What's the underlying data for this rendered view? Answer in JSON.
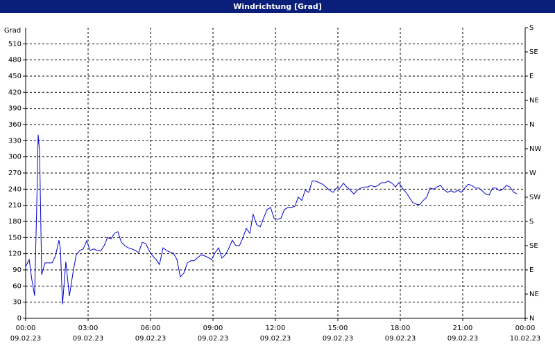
{
  "chart_data": {
    "type": "line",
    "title": "Windrichtung [Grad]",
    "y_label": "Grad",
    "xlim": [
      0,
      24
    ],
    "xticks": [
      {
        "value": 0,
        "label": "00:00"
      },
      {
        "value": 3,
        "label": "03:00"
      },
      {
        "value": 6,
        "label": "06:00"
      },
      {
        "value": 9,
        "label": "09:00"
      },
      {
        "value": 12,
        "label": "12:00"
      },
      {
        "value": 15,
        "label": "15:00"
      },
      {
        "value": 18,
        "label": "18:00"
      },
      {
        "value": 21,
        "label": "21:00"
      },
      {
        "value": 24,
        "label": "00:00"
      }
    ],
    "xtick_dates": [
      "09.02.23",
      "09.02.23",
      "09.02.23",
      "09.02.23",
      "09.02.23",
      "09.02.23",
      "09.02.23",
      "09.02.23",
      "10.02.23"
    ],
    "ylim": [
      0,
      540
    ],
    "yticks": [
      0,
      30,
      60,
      90,
      120,
      150,
      180,
      210,
      240,
      270,
      300,
      330,
      360,
      390,
      420,
      450,
      480,
      510
    ],
    "y2lim": [
      0,
      540
    ],
    "y2ticks": [
      {
        "value": 0,
        "label": "N"
      },
      {
        "value": 45,
        "label": "NE"
      },
      {
        "value": 90,
        "label": "E"
      },
      {
        "value": 135,
        "label": "SE"
      },
      {
        "value": 180,
        "label": "S"
      },
      {
        "value": 225,
        "label": "SW"
      },
      {
        "value": 270,
        "label": "W"
      },
      {
        "value": 315,
        "label": "NW"
      },
      {
        "value": 360,
        "label": "N"
      },
      {
        "value": 405,
        "label": "NE"
      },
      {
        "value": 450,
        "label": "E"
      },
      {
        "value": 495,
        "label": "SE"
      },
      {
        "value": 540,
        "label": "S"
      }
    ],
    "grid": true,
    "series": [
      {
        "color": "#0000cc",
        "x": [
          0,
          0.17,
          0.3,
          0.43,
          0.53,
          0.6,
          0.67,
          0.77,
          0.93,
          1.1,
          1.27,
          1.43,
          1.6,
          1.67,
          1.77,
          1.93,
          2.1,
          2.27,
          2.43,
          2.6,
          2.77,
          2.93,
          3.1,
          3.27,
          3.43,
          3.6,
          3.77,
          3.93,
          4.1,
          4.27,
          4.43,
          4.6,
          4.77,
          4.93,
          5.1,
          5.27,
          5.43,
          5.6,
          5.77,
          5.93,
          6.1,
          6.27,
          6.43,
          6.6,
          6.77,
          6.93,
          7.1,
          7.27,
          7.43,
          7.6,
          7.77,
          7.93,
          8.1,
          8.27,
          8.43,
          8.6,
          8.77,
          8.93,
          9.1,
          9.27,
          9.43,
          9.6,
          9.77,
          9.93,
          10.1,
          10.27,
          10.43,
          10.6,
          10.77,
          10.93,
          11.1,
          11.27,
          11.43,
          11.6,
          11.77,
          11.93,
          12.1,
          12.27,
          12.43,
          12.6,
          12.77,
          12.93,
          13.1,
          13.27,
          13.43,
          13.6,
          13.77,
          13.93,
          14.1,
          14.27,
          14.43,
          14.6,
          14.77,
          14.93,
          15.1,
          15.27,
          15.43,
          15.6,
          15.77,
          15.93,
          16.1,
          16.27,
          16.43,
          16.6,
          16.77,
          16.93,
          17.1,
          17.27,
          17.43,
          17.6,
          17.77,
          17.93,
          18.1,
          18.27,
          18.43,
          18.6,
          18.77,
          18.93,
          19.1,
          19.27,
          19.43,
          19.6,
          19.77,
          19.93,
          20.1,
          20.27,
          20.43,
          20.6,
          20.77,
          20.93,
          21.1,
          21.27,
          21.43,
          21.6,
          21.77,
          21.93,
          22.1,
          22.27,
          22.43,
          22.6,
          22.77,
          22.93,
          23.1,
          23.27,
          23.43,
          23.6
        ],
        "values": [
          96,
          109,
          71,
          42,
          206,
          341,
          309,
          81,
          103,
          103,
          103,
          116,
          145,
          129,
          26,
          105,
          41,
          84,
          118,
          126,
          129,
          144,
          126,
          129,
          126,
          125,
          135,
          150,
          148,
          158,
          161,
          141,
          135,
          131,
          129,
          126,
          122,
          141,
          139,
          126,
          116,
          109,
          100,
          131,
          126,
          123,
          121,
          109,
          77,
          84,
          103,
          107,
          107,
          113,
          118,
          116,
          113,
          109,
          122,
          131,
          112,
          118,
          131,
          145,
          135,
          135,
          149,
          167,
          158,
          193,
          174,
          170,
          186,
          202,
          206,
          186,
          184,
          186,
          202,
          206,
          206,
          208,
          225,
          219,
          238,
          234,
          255,
          255,
          252,
          249,
          244,
          238,
          234,
          242,
          242,
          251,
          244,
          238,
          231,
          238,
          242,
          244,
          244,
          247,
          244,
          247,
          252,
          252,
          255,
          251,
          244,
          252,
          242,
          234,
          225,
          215,
          212,
          211,
          219,
          225,
          242,
          240,
          244,
          247,
          239,
          234,
          237,
          234,
          238,
          234,
          242,
          249,
          247,
          242,
          242,
          237,
          231,
          229,
          242,
          242,
          237,
          240,
          247,
          244,
          235,
          231
        ]
      }
    ]
  }
}
